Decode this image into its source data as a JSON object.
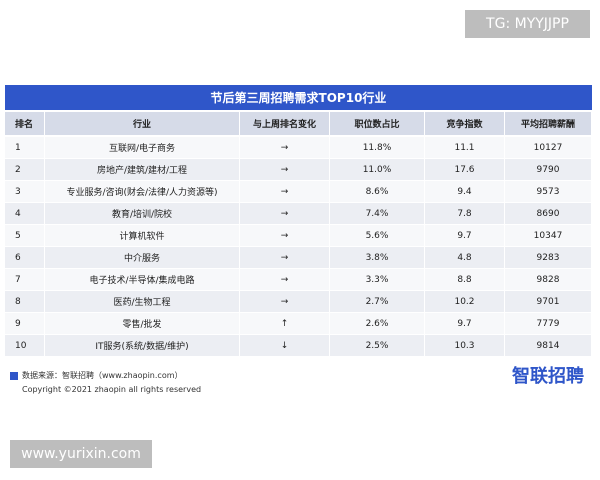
{
  "watermark_top": "TG: MYYJJPP",
  "table": {
    "title": "节后第三周招聘需求TOP10行业",
    "headers": [
      "排名",
      "行业",
      "与上周排名变化",
      "职位数占比",
      "竞争指数",
      "平均招聘薪酬"
    ],
    "rows": [
      [
        "1",
        "互联网/电子商务",
        "→",
        "11.8%",
        "11.1",
        "10127"
      ],
      [
        "2",
        "房地产/建筑/建材/工程",
        "→",
        "11.0%",
        "17.6",
        "9790"
      ],
      [
        "3",
        "专业服务/咨询(财会/法律/人力资源等)",
        "→",
        "8.6%",
        "9.4",
        "9573"
      ],
      [
        "4",
        "教育/培训/院校",
        "→",
        "7.4%",
        "7.8",
        "8690"
      ],
      [
        "5",
        "计算机软件",
        "→",
        "5.6%",
        "9.7",
        "10347"
      ],
      [
        "6",
        "中介服务",
        "→",
        "3.8%",
        "4.8",
        "9283"
      ],
      [
        "7",
        "电子技术/半导体/集成电路",
        "→",
        "3.3%",
        "8.8",
        "9828"
      ],
      [
        "8",
        "医药/生物工程",
        "→",
        "2.7%",
        "10.2",
        "9701"
      ],
      [
        "9",
        "零售/批发",
        "↑",
        "2.6%",
        "9.7",
        "7779"
      ],
      [
        "10",
        "IT服务(系统/数据/维护)",
        "↓",
        "2.5%",
        "10.3",
        "9814"
      ]
    ]
  },
  "footer": {
    "source": "数据来源：智联招聘（www.zhaopin.com）",
    "copyright": "Copyright ©2021 zhaopin all rights reserved",
    "logo": "智联招聘"
  },
  "watermark_bottom": "www.yurixin.com"
}
